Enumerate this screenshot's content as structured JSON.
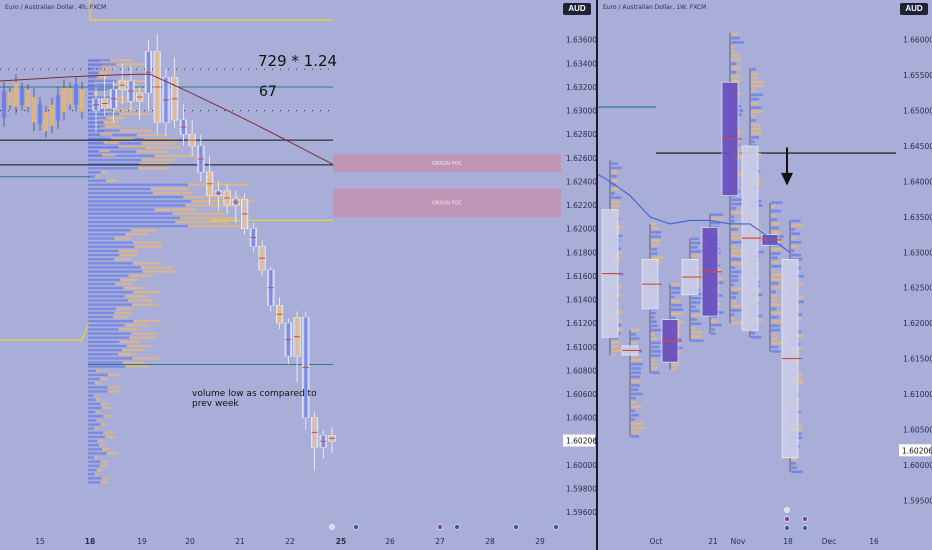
{
  "colors": {
    "background": "#a9aed8",
    "candle_body": "#c9cde8",
    "profile_blue": "#6d7fe6",
    "profile_orange": "#e7b878",
    "poc_red": "#d24a3a",
    "sma_line": "#7a2d3a",
    "trend_blue": "#3c63d8",
    "zone": "#c98aa6",
    "yellow_line": "#e8d23a",
    "teal_line": "#2d7a84",
    "dark_line": "#111111",
    "purple_box": "#6a4fbf"
  },
  "left_pane": {
    "title": "Euro / Australian Dollar, 4h, FXCM",
    "currency": "AUD",
    "last_price": "1.60206",
    "annotations": {
      "multiplier": "729 * 1.24",
      "count": "67",
      "volume_note_line1": "volume low as compared to",
      "volume_note_line2": "prev week"
    },
    "zones": [
      "ORIGIN POC",
      "ORIGIN POC"
    ]
  },
  "right_pane": {
    "title": "Euro / Australian Dollar, 1W, FXCM",
    "currency": "AUD",
    "last_price": "1.60206",
    "arrow": "down-arrow-icon"
  },
  "chart_data": [
    {
      "type": "line",
      "title": "Euro / Australian Dollar, 4h, FXCM",
      "y_axis_ticks": [
        "1.63600",
        "1.63400",
        "1.63200",
        "1.63000",
        "1.62800",
        "1.62600",
        "1.62400",
        "1.62200",
        "1.62000",
        "1.61800",
        "1.61600",
        "1.61400",
        "1.61200",
        "1.61000",
        "1.60800",
        "1.60600",
        "1.60400",
        "1.60200",
        "1.60000",
        "1.59800",
        "1.59600"
      ],
      "x_axis_ticks": [
        "15",
        "18",
        "19",
        "20",
        "21",
        "22",
        "25",
        "26",
        "27",
        "28",
        "29"
      ],
      "ylim": [
        1.5955,
        1.6375
      ],
      "candles": [
        {
          "o": 1.63,
          "h": 1.632,
          "l": 1.6282,
          "c": 1.631
        },
        {
          "o": 1.631,
          "h": 1.633,
          "l": 1.6295,
          "c": 1.6302
        },
        {
          "o": 1.6302,
          "h": 1.6325,
          "l": 1.629,
          "c": 1.6318
        },
        {
          "o": 1.6318,
          "h": 1.634,
          "l": 1.6305,
          "c": 1.6325
        },
        {
          "o": 1.6325,
          "h": 1.6338,
          "l": 1.63,
          "c": 1.6308
        },
        {
          "o": 1.6308,
          "h": 1.632,
          "l": 1.6292,
          "c": 1.6315
        },
        {
          "o": 1.6315,
          "h": 1.636,
          "l": 1.63,
          "c": 1.635
        },
        {
          "o": 1.635,
          "h": 1.6365,
          "l": 1.628,
          "c": 1.629
        },
        {
          "o": 1.629,
          "h": 1.6335,
          "l": 1.6278,
          "c": 1.6328
        },
        {
          "o": 1.6328,
          "h": 1.6345,
          "l": 1.6285,
          "c": 1.6292
        },
        {
          "o": 1.6292,
          "h": 1.6305,
          "l": 1.627,
          "c": 1.628
        },
        {
          "o": 1.628,
          "h": 1.6292,
          "l": 1.6262,
          "c": 1.627
        },
        {
          "o": 1.627,
          "h": 1.628,
          "l": 1.624,
          "c": 1.6248
        },
        {
          "o": 1.6248,
          "h": 1.6262,
          "l": 1.622,
          "c": 1.6228
        },
        {
          "o": 1.6228,
          "h": 1.624,
          "l": 1.6215,
          "c": 1.6232
        },
        {
          "o": 1.6232,
          "h": 1.6238,
          "l": 1.6212,
          "c": 1.622
        },
        {
          "o": 1.622,
          "h": 1.6232,
          "l": 1.6205,
          "c": 1.6225
        },
        {
          "o": 1.6225,
          "h": 1.623,
          "l": 1.6195,
          "c": 1.62
        },
        {
          "o": 1.62,
          "h": 1.6205,
          "l": 1.618,
          "c": 1.6185
        },
        {
          "o": 1.6185,
          "h": 1.619,
          "l": 1.616,
          "c": 1.6165
        },
        {
          "o": 1.6165,
          "h": 1.6168,
          "l": 1.613,
          "c": 1.6135
        },
        {
          "o": 1.6135,
          "h": 1.6142,
          "l": 1.6115,
          "c": 1.612
        },
        {
          "o": 1.612,
          "h": 1.6124,
          "l": 1.6085,
          "c": 1.6092
        },
        {
          "o": 1.6092,
          "h": 1.613,
          "l": 1.607,
          "c": 1.6125
        },
        {
          "o": 1.6125,
          "h": 1.613,
          "l": 1.603,
          "c": 1.604
        },
        {
          "o": 1.604,
          "h": 1.6045,
          "l": 1.5995,
          "c": 1.6015
        },
        {
          "o": 1.6015,
          "h": 1.603,
          "l": 1.6005,
          "c": 1.6025
        },
        {
          "o": 1.6025,
          "h": 1.6032,
          "l": 1.601,
          "c": 1.602
        }
      ],
      "horizontal_levels": [
        1.632,
        1.6275,
        1.6254,
        1.6085
      ],
      "zones": [
        {
          "label": "ORIGIN POC",
          "low": 1.6248,
          "high": 1.6263
        },
        {
          "label": "ORIGIN POC",
          "low": 1.621,
          "high": 1.6234
        }
      ],
      "last_price": 1.60206
    },
    {
      "type": "bar",
      "title": "Euro / Australian Dollar, 1W, FXCM",
      "y_axis_ticks": [
        "1.66000",
        "1.65500",
        "1.65000",
        "1.64500",
        "1.64000",
        "1.63500",
        "1.63000",
        "1.62500",
        "1.62000",
        "1.61500",
        "1.61000",
        "1.60500",
        "1.60000",
        "1.59500"
      ],
      "x_axis_ticks": [
        "Oct",
        "21",
        "Nov",
        "18",
        "Dec",
        "16"
      ],
      "ylim": [
        1.5925,
        1.6625
      ],
      "candles": [
        {
          "o": 1.636,
          "h": 1.643,
          "l": 1.6155,
          "c": 1.618,
          "purple": false
        },
        {
          "o": 1.6168,
          "h": 1.619,
          "l": 1.604,
          "c": 1.6155,
          "purple": false
        },
        {
          "o": 1.629,
          "h": 1.634,
          "l": 1.613,
          "c": 1.622,
          "purple": false
        },
        {
          "o": 1.6205,
          "h": 1.6255,
          "l": 1.6135,
          "c": 1.6145,
          "purple": true
        },
        {
          "o": 1.624,
          "h": 1.632,
          "l": 1.6175,
          "c": 1.629,
          "purple": false
        },
        {
          "o": 1.6335,
          "h": 1.6355,
          "l": 1.6185,
          "c": 1.621,
          "purple": true
        },
        {
          "o": 1.638,
          "h": 1.661,
          "l": 1.62,
          "c": 1.654,
          "purple": true
        },
        {
          "o": 1.645,
          "h": 1.656,
          "l": 1.618,
          "c": 1.619,
          "purple": false
        },
        {
          "o": 1.6325,
          "h": 1.637,
          "l": 1.616,
          "c": 1.631,
          "purple": true
        },
        {
          "o": 1.629,
          "h": 1.6345,
          "l": 1.599,
          "c": 1.601,
          "purple": false
        }
      ],
      "sma": [
        1.64,
        1.638,
        1.635,
        1.634,
        1.6345,
        1.6345,
        1.634,
        1.634,
        1.632,
        1.63
      ],
      "horizontal_levels": [
        1.6505,
        1.644
      ],
      "last_price": 1.60206
    }
  ]
}
